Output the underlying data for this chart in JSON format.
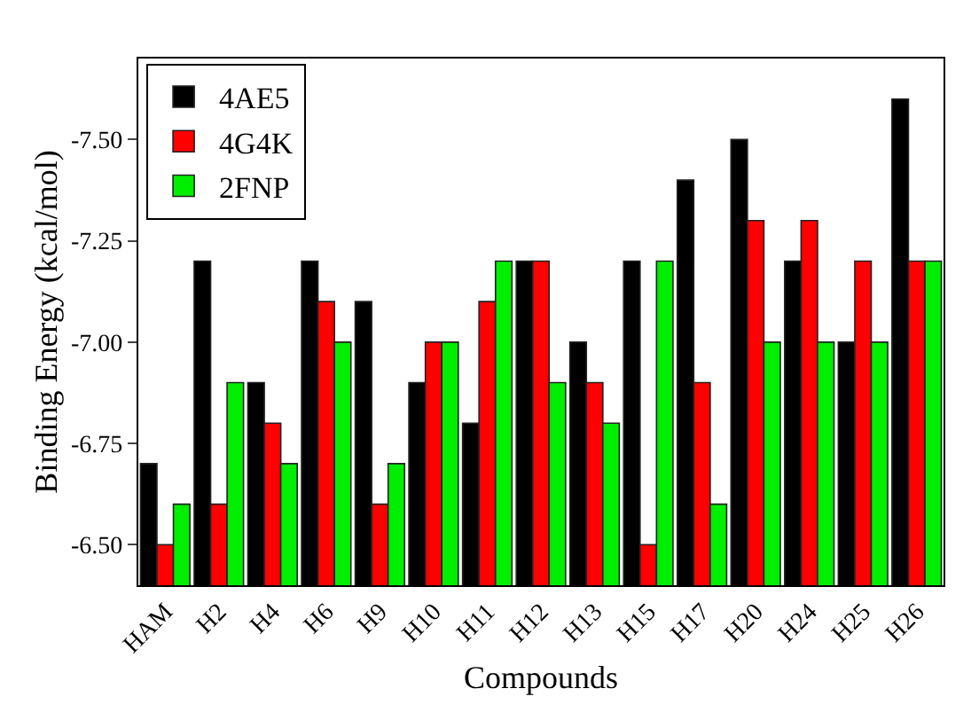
{
  "chart_data": {
    "type": "bar",
    "xlabel": "Compounds",
    "ylabel": "Binding Energy (kcal/mol)",
    "categories": [
      "HAM",
      "H2",
      "H4",
      "H6",
      "H9",
      "H10",
      "H11",
      "H12",
      "H13",
      "H15",
      "H17",
      "H20",
      "H24",
      "H25",
      "H26"
    ],
    "series": [
      {
        "name": "4AE5",
        "color": "#000000",
        "values": [
          -6.7,
          -7.2,
          -6.9,
          -7.2,
          -7.1,
          -6.9,
          -6.8,
          -7.2,
          -7.0,
          -7.2,
          -7.4,
          -7.5,
          -7.2,
          -7.0,
          -7.6
        ]
      },
      {
        "name": "4G4K",
        "color": "#ff0000",
        "values": [
          -6.5,
          -6.6,
          -6.8,
          -7.1,
          -6.6,
          -7.0,
          -7.1,
          -7.2,
          -6.9,
          -6.5,
          -6.9,
          -7.3,
          -7.3,
          -7.2,
          -7.2
        ]
      },
      {
        "name": "2FNP",
        "color": "#00ee00",
        "values": [
          -6.6,
          -6.9,
          -6.7,
          -7.0,
          -6.7,
          -7.0,
          -7.2,
          -6.9,
          -6.8,
          -7.2,
          -6.6,
          -7.0,
          -7.0,
          -7.0,
          -7.2
        ]
      }
    ],
    "ylim": [
      -6.4,
      -7.7
    ],
    "yticks": [
      {
        "value": -6.5,
        "label": "-6.50"
      },
      {
        "value": -6.75,
        "label": "-6.75"
      },
      {
        "value": -7.0,
        "label": "-7.00"
      },
      {
        "value": -7.25,
        "label": "-7.25"
      },
      {
        "value": -7.5,
        "label": "-7.50"
      }
    ],
    "grid": false,
    "legend": "top left"
  }
}
